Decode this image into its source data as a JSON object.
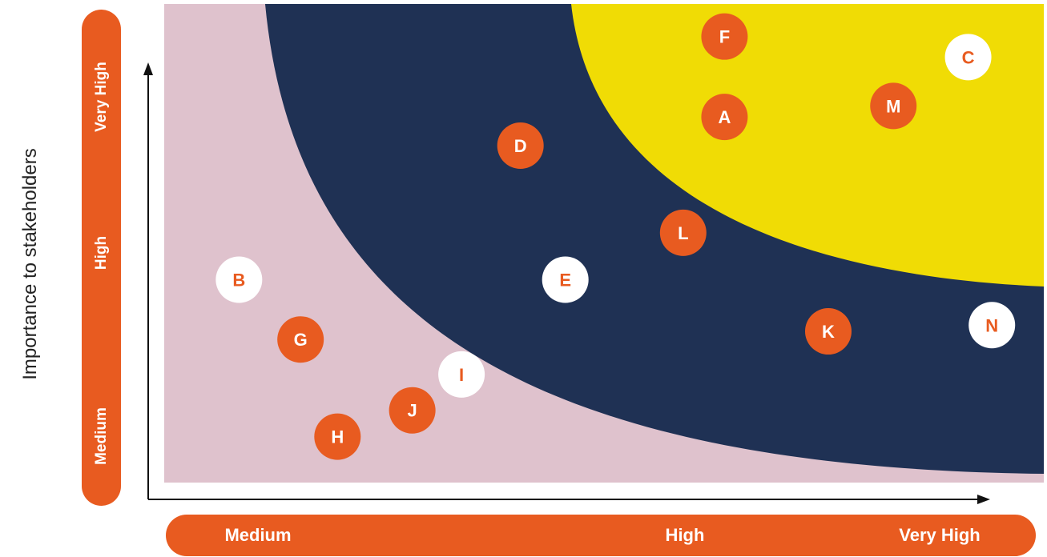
{
  "colors": {
    "accent": "#e85b20",
    "low_zone": "#dfc2cd",
    "mid_zone": "#1f3154",
    "high_zone": "#f0dc05",
    "white": "#ffffff"
  },
  "chart_data": {
    "type": "scatter",
    "title": "",
    "ylabel": "Importance to stakeholders",
    "xlabel": "",
    "x_ticks": [
      "Medium",
      "High",
      "Very High"
    ],
    "y_ticks": [
      "Medium",
      "High",
      "Very High"
    ],
    "xlim": [
      0,
      100
    ],
    "ylim": [
      0,
      100
    ],
    "grid": false,
    "zones": [
      "low",
      "medium",
      "high"
    ],
    "points": [
      {
        "label": "F",
        "x": 63.7,
        "y": 93.2,
        "style": "orange"
      },
      {
        "label": "C",
        "x": 91.4,
        "y": 88.9,
        "style": "white"
      },
      {
        "label": "A",
        "x": 63.7,
        "y": 76.4,
        "style": "orange"
      },
      {
        "label": "M",
        "x": 82.9,
        "y": 78.7,
        "style": "orange"
      },
      {
        "label": "D",
        "x": 40.5,
        "y": 70.4,
        "style": "orange"
      },
      {
        "label": "L",
        "x": 59.0,
        "y": 52.2,
        "style": "orange"
      },
      {
        "label": "B",
        "x": 8.5,
        "y": 42.4,
        "style": "white"
      },
      {
        "label": "E",
        "x": 45.6,
        "y": 42.4,
        "style": "white"
      },
      {
        "label": "G",
        "x": 15.5,
        "y": 29.9,
        "style": "orange"
      },
      {
        "label": "K",
        "x": 75.5,
        "y": 31.6,
        "style": "orange"
      },
      {
        "label": "N",
        "x": 94.1,
        "y": 32.9,
        "style": "white"
      },
      {
        "label": "I",
        "x": 33.8,
        "y": 22.6,
        "style": "white"
      },
      {
        "label": "J",
        "x": 28.2,
        "y": 15.1,
        "style": "orange"
      },
      {
        "label": "H",
        "x": 19.7,
        "y": 9.6,
        "style": "orange"
      }
    ]
  }
}
